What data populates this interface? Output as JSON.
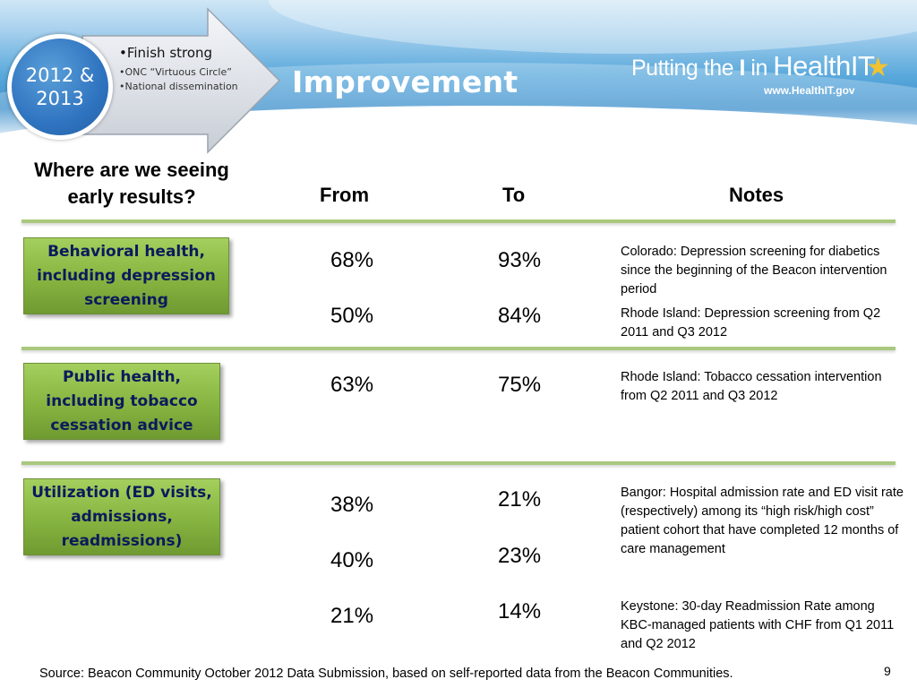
{
  "header": {
    "circle_line1": "2012 &",
    "circle_line2": "2013",
    "arrow_main": "•Finish strong",
    "arrow_bullets": [
      "•ONC “Virtuous Circle”",
      "•National dissemination"
    ],
    "title": "Improvement",
    "logo": {
      "prefix": "Putting the ",
      "i": "I",
      "mid": " in ",
      "brand": "HealthIT",
      "url": "www.HealthIT.gov",
      "star_icon": "star-icon"
    }
  },
  "table": {
    "question_line1": "Where are we seeing",
    "question_line2": "early results?",
    "col_from": "From",
    "col_to": "To",
    "col_notes": "Notes",
    "sections": [
      {
        "category": "Behavioral health, including depression screening",
        "rows": [
          {
            "from": "68%",
            "to": "93%",
            "note": "Colorado: Depression screening for diabetics since the beginning of the Beacon intervention period"
          },
          {
            "from": "50%",
            "to": "84%",
            "note": "Rhode Island: Depression screening from Q2 2011 and Q3 2012"
          }
        ]
      },
      {
        "category": "Public health, including tobacco cessation advice",
        "rows": [
          {
            "from": "63%",
            "to": "75%",
            "note": "Rhode Island: Tobacco cessation intervention from Q2 2011 and Q3 2012"
          }
        ]
      },
      {
        "category": "Utilization (ED visits, admissions, readmissions)",
        "rows": [
          {
            "from": "38%",
            "to": "21%",
            "note": "Bangor: Hospital admission rate and ED visit rate (respectively) among its “high risk/high cost” patient cohort that have completed 12 months of care management"
          },
          {
            "from": "40%",
            "to": "23%",
            "note": ""
          },
          {
            "from": "21%",
            "to": "14%",
            "note": "Keystone: 30-day Readmission Rate among KBC-managed patients with CHF from Q1 2011 and Q2 2012"
          }
        ]
      }
    ]
  },
  "footer": {
    "source": "Source:  Beacon Community October 2012 Data Submission, based on self-reported data from the Beacon Communities.",
    "page_number": "9"
  },
  "colors": {
    "category_green": "#86b440",
    "category_text": "#0b1a5c",
    "rule_green": "#a9c87e",
    "title_white": "#ffffff"
  }
}
